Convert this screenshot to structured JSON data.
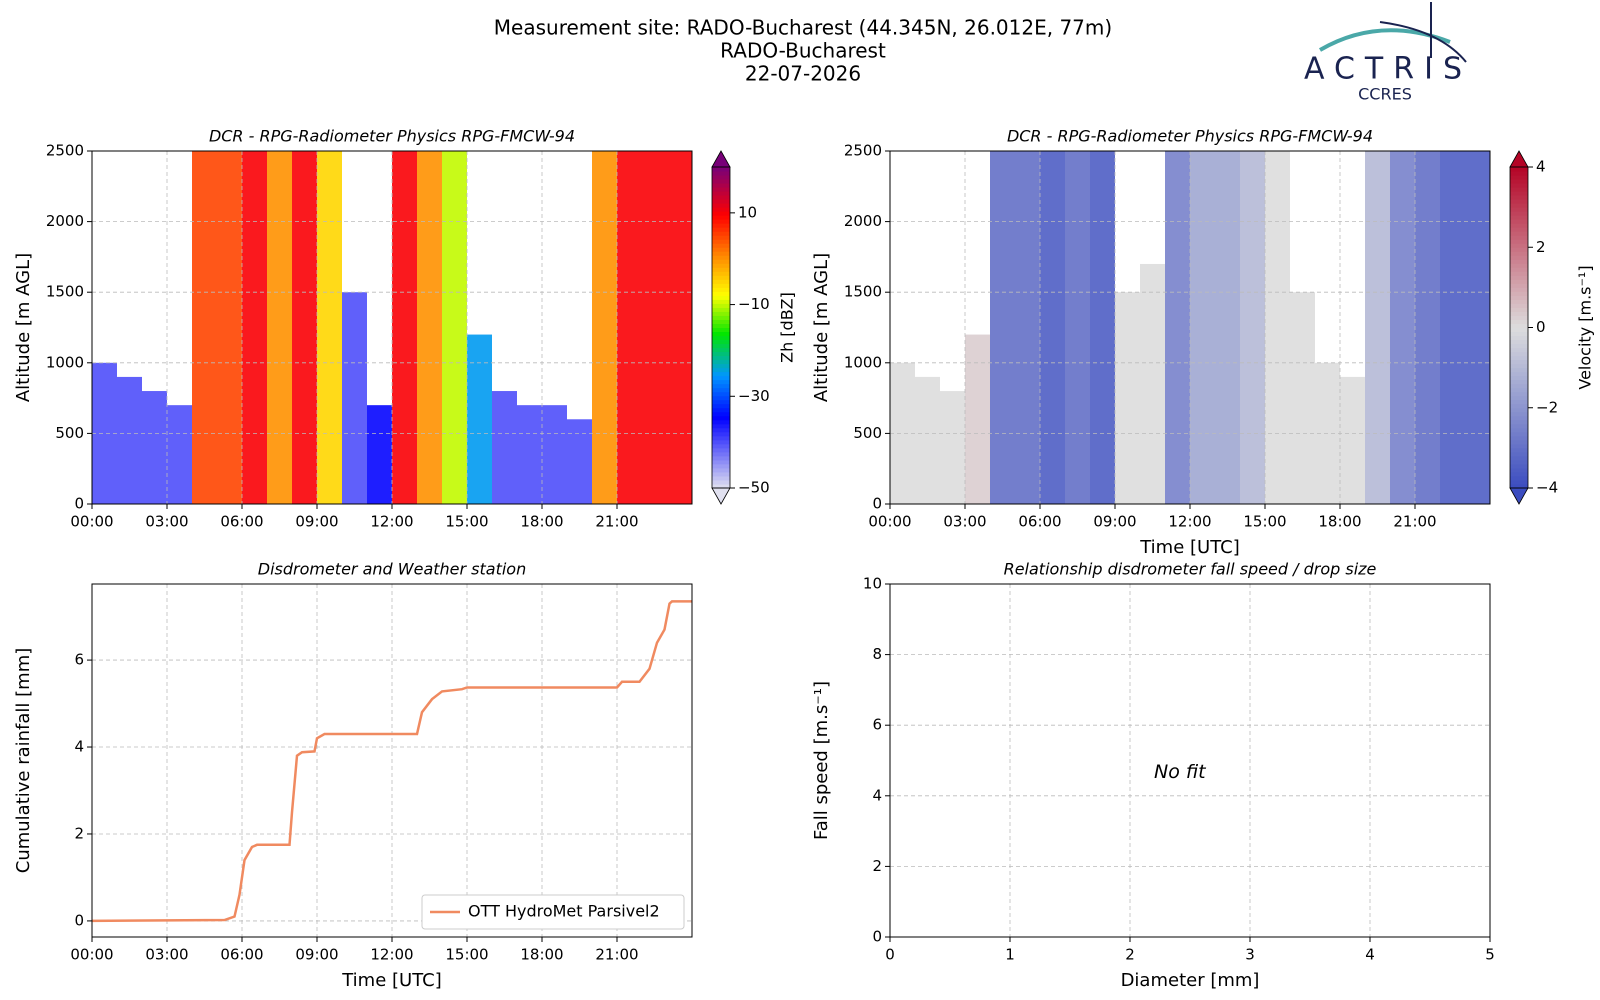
{
  "header": {
    "title": "Measurement site: RADO-Bucharest (44.345N, 26.012E, 77m)",
    "site": "RADO-Bucharest",
    "date": "22-07-2026",
    "logo": "ACTRIS",
    "logo_sub": "CCRES"
  },
  "chart_data": [
    {
      "type": "heatmap",
      "title": "DCR - RPG-Radiometer Physics RPG-FMCW-94",
      "y_label": "Altitude [m AGL]",
      "x": [
        0,
        1,
        2,
        3,
        4,
        5,
        6,
        7,
        8,
        9,
        10,
        11,
        12,
        13,
        14,
        15,
        16,
        17,
        18,
        19,
        20,
        21,
        22,
        23
      ],
      "values": [
        -40,
        -40,
        -40,
        -40,
        5,
        5,
        10,
        0,
        10,
        -5,
        -40,
        -35,
        10,
        0,
        -10,
        -25,
        -40,
        -40,
        -40,
        -40,
        0,
        10,
        10,
        10
      ],
      "tops": [
        1000,
        900,
        800,
        700,
        2500,
        2500,
        2500,
        2500,
        2500,
        2500,
        1500,
        700,
        2500,
        2500,
        2500,
        1200,
        800,
        700,
        700,
        600,
        2500,
        2500,
        2500,
        2500
      ],
      "xlim": [
        0,
        24
      ],
      "ylim": [
        0,
        2500
      ],
      "yticks": [
        0,
        500,
        1000,
        1500,
        2000,
        2500
      ],
      "xticks": [
        {
          "value": 0,
          "label": "00:00"
        },
        {
          "value": 3,
          "label": "03:00"
        },
        {
          "value": 6,
          "label": "06:00"
        },
        {
          "value": 9,
          "label": "09:00"
        },
        {
          "value": 12,
          "label": "12:00"
        },
        {
          "value": 15,
          "label": "15:00"
        },
        {
          "value": 18,
          "label": "18:00"
        },
        {
          "value": 21,
          "label": "21:00"
        }
      ],
      "grid": true,
      "cmap": "jet",
      "colorbar": {
        "label": "Zh [dBZ]",
        "lim": [
          -50,
          20
        ],
        "ticks": [
          {
            "value": -50,
            "label": "−50"
          },
          {
            "value": -30,
            "label": "−30"
          },
          {
            "value": -10,
            "label": "−10"
          },
          10
        ]
      }
    },
    {
      "type": "heatmap",
      "title": "DCR - RPG-Radiometer Physics RPG-FMCW-94",
      "y_label": "Altitude [m AGL]",
      "x_label": "Time [UTC]",
      "x": [
        0,
        1,
        2,
        3,
        4,
        5,
        6,
        7,
        8,
        9,
        10,
        11,
        12,
        13,
        14,
        15,
        16,
        17,
        18,
        19,
        20,
        21,
        22,
        23
      ],
      "values": [
        0,
        0,
        0,
        0.3,
        -3,
        -3,
        -3.5,
        -3,
        -3.5,
        0,
        0,
        -2.5,
        -1.5,
        -1.5,
        -1,
        0,
        0,
        0,
        0,
        -1,
        -2.5,
        -3,
        -3.5,
        -3.5
      ],
      "tops": [
        1000,
        900,
        800,
        1200,
        2500,
        2500,
        2500,
        2500,
        2500,
        1500,
        1700,
        2500,
        2500,
        2500,
        2500,
        2500,
        1500,
        1000,
        900,
        2500,
        2500,
        2500,
        2500,
        2500
      ],
      "xlim": [
        0,
        24
      ],
      "ylim": [
        0,
        2500
      ],
      "yticks": [
        0,
        500,
        1000,
        1500,
        2000,
        2500
      ],
      "xticks": [
        {
          "value": 0,
          "label": "00:00"
        },
        {
          "value": 3,
          "label": "03:00"
        },
        {
          "value": 6,
          "label": "06:00"
        },
        {
          "value": 9,
          "label": "09:00"
        },
        {
          "value": 12,
          "label": "12:00"
        },
        {
          "value": 15,
          "label": "15:00"
        },
        {
          "value": 18,
          "label": "18:00"
        },
        {
          "value": 21,
          "label": "21:00"
        }
      ],
      "grid": true,
      "cmap": "coolwarm",
      "colorbar": {
        "label": "Velocity [m.s⁻¹]",
        "lim": [
          -4,
          4
        ],
        "ticks": [
          {
            "value": -4,
            "label": "−4"
          },
          {
            "value": -2,
            "label": "−2"
          },
          0,
          2,
          4
        ]
      }
    },
    {
      "type": "line",
      "title": "Disdrometer and Weather station",
      "y_label": "Cumulative rainfall [mm]",
      "x_label": "Time [UTC]",
      "series": [
        {
          "name": "OTT HydroMet Parsivel2",
          "color": "#f08a60",
          "x": [
            0,
            5.3,
            5.7,
            5.9,
            6.1,
            6.4,
            6.6,
            7.9,
            8.0,
            8.2,
            8.4,
            8.9,
            9.0,
            9.3,
            13.0,
            13.2,
            13.6,
            14.0,
            14.8,
            15.0,
            21.0,
            21.2,
            21.9,
            22.3,
            22.6,
            22.9,
            23.1,
            23.2,
            24
          ],
          "values": [
            0,
            0.02,
            0.1,
            0.6,
            1.4,
            1.7,
            1.75,
            1.75,
            2.5,
            3.8,
            3.88,
            3.9,
            4.2,
            4.3,
            4.3,
            4.8,
            5.1,
            5.28,
            5.33,
            5.37,
            5.37,
            5.5,
            5.5,
            5.8,
            6.4,
            6.7,
            7.3,
            7.35,
            7.35
          ]
        }
      ],
      "xlim": [
        0,
        24
      ],
      "ylim": [
        -0.37,
        7.75
      ],
      "yticks": [
        0,
        2,
        4,
        6
      ],
      "xticks": [
        {
          "value": 0,
          "label": "00:00"
        },
        {
          "value": 3,
          "label": "03:00"
        },
        {
          "value": 6,
          "label": "06:00"
        },
        {
          "value": 9,
          "label": "09:00"
        },
        {
          "value": 12,
          "label": "12:00"
        },
        {
          "value": 15,
          "label": "15:00"
        },
        {
          "value": 18,
          "label": "18:00"
        },
        {
          "value": 21,
          "label": "21:00"
        }
      ],
      "grid": true,
      "legend": "lower right"
    },
    {
      "type": "empty",
      "title": "Relationship disdrometer fall speed / drop size",
      "y_label": "Fall speed [m.s⁻¹]",
      "x_label": "Diameter [mm]",
      "annotation": "No fit",
      "xlim": [
        0,
        5
      ],
      "ylim": [
        0,
        10
      ],
      "xticks": [
        0,
        1,
        2,
        3,
        4,
        5
      ],
      "yticks": [
        0,
        2,
        4,
        6,
        8,
        10
      ],
      "grid": true
    }
  ]
}
